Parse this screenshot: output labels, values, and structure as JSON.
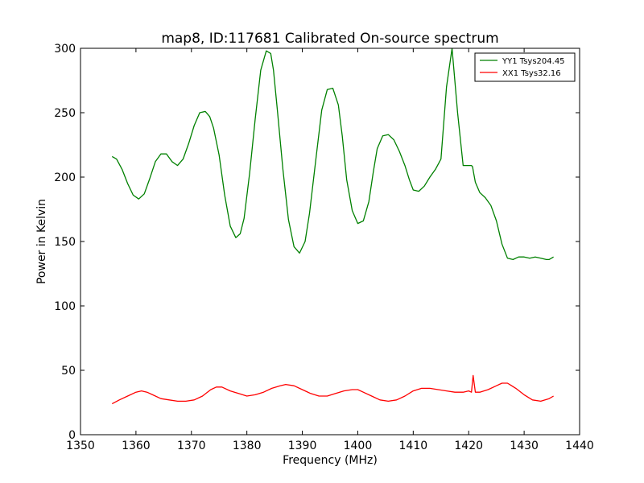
{
  "chart_data": {
    "type": "line",
    "title": "map8, ID:117681 Calibrated On-source spectrum",
    "xlabel": "Frequency (MHz)",
    "ylabel": "Power in Kelvin",
    "xlim": [
      1350,
      1440
    ],
    "ylim": [
      0,
      300
    ],
    "xticks": [
      1350,
      1360,
      1370,
      1380,
      1390,
      1400,
      1410,
      1420,
      1430,
      1440
    ],
    "yticks": [
      0,
      50,
      100,
      150,
      200,
      250,
      300
    ],
    "grid": false,
    "legend_position": "top-right",
    "series": [
      {
        "name": "YY1 Tsys204.45",
        "color": "#008000",
        "x": [
          1355.7,
          1356.5,
          1357.5,
          1358.5,
          1359.5,
          1360.5,
          1361.5,
          1362.5,
          1363.5,
          1364.5,
          1365.5,
          1366.5,
          1367.5,
          1368.5,
          1369.5,
          1370.5,
          1371.5,
          1372.5,
          1373.3,
          1374,
          1375,
          1376,
          1377,
          1378,
          1378.8,
          1379.5,
          1380.5,
          1381.5,
          1382.5,
          1383.5,
          1384.3,
          1384.8,
          1385.5,
          1386.5,
          1387.5,
          1388.5,
          1389.5,
          1390.5,
          1391.3,
          1392.5,
          1393.5,
          1394.5,
          1395.5,
          1396.5,
          1397.2,
          1398,
          1399,
          1400,
          1401,
          1402,
          1402.8,
          1403.5,
          1404.5,
          1405.5,
          1406.5,
          1407.5,
          1408.5,
          1409.3,
          1410,
          1411,
          1412,
          1413,
          1414,
          1415,
          1416,
          1417,
          1418,
          1419,
          1420,
          1420.5,
          1420.7,
          1420.9,
          1421.2,
          1422,
          1423,
          1424,
          1425,
          1426,
          1427,
          1428,
          1429,
          1430,
          1431,
          1432,
          1433,
          1434,
          1434.5,
          1435.3
        ],
        "y": [
          216,
          214,
          206,
          195,
          186,
          183,
          187,
          199,
          212,
          218,
          218,
          212,
          209,
          214,
          226,
          240,
          250,
          251,
          247,
          238,
          217,
          186,
          162,
          153,
          156,
          168,
          203,
          245,
          283,
          298,
          296,
          283,
          252,
          206,
          167,
          146,
          141,
          150,
          172,
          216,
          252,
          268,
          269,
          256,
          232,
          198,
          174,
          164,
          166,
          181,
          204,
          222,
          232,
          233,
          229,
          220,
          209,
          198,
          190,
          189,
          193,
          200,
          206,
          214,
          270,
          300,
          250,
          209,
          209,
          209,
          208,
          203,
          196,
          188,
          184,
          178,
          166,
          148,
          137,
          136,
          138,
          138,
          137,
          138,
          137,
          136,
          136,
          138
        ]
      },
      {
        "name": "XX1 Tsys32.16",
        "color": "#ff0000",
        "x": [
          1355.7,
          1357,
          1358.5,
          1360,
          1361,
          1362,
          1363,
          1364.5,
          1366,
          1367.5,
          1369,
          1370.5,
          1372,
          1373.5,
          1374.5,
          1375.5,
          1377,
          1378.5,
          1380,
          1381.5,
          1383,
          1384.5,
          1386,
          1387,
          1388.5,
          1390,
          1391.5,
          1393,
          1394.5,
          1396,
          1397.5,
          1399,
          1400,
          1401,
          1402.5,
          1404,
          1405.5,
          1407,
          1408.5,
          1410,
          1411.5,
          1413,
          1414.5,
          1416,
          1417.5,
          1419,
          1420,
          1420.5,
          1420.8,
          1421.2,
          1422,
          1423.5,
          1425,
          1426,
          1427,
          1428.5,
          1430,
          1431.5,
          1433,
          1434.5,
          1435.3
        ],
        "y": [
          24,
          27,
          30,
          33,
          34,
          33,
          31,
          28,
          27,
          26,
          26,
          27,
          30,
          35,
          37,
          37,
          34,
          32,
          30,
          31,
          33,
          36,
          38,
          39,
          38,
          35,
          32,
          30,
          30,
          32,
          34,
          35,
          35,
          33,
          30,
          27,
          26,
          27,
          30,
          34,
          36,
          36,
          35,
          34,
          33,
          33,
          34,
          33,
          46,
          33,
          33,
          35,
          38,
          40,
          40,
          36,
          31,
          27,
          26,
          28,
          30
        ]
      }
    ]
  }
}
